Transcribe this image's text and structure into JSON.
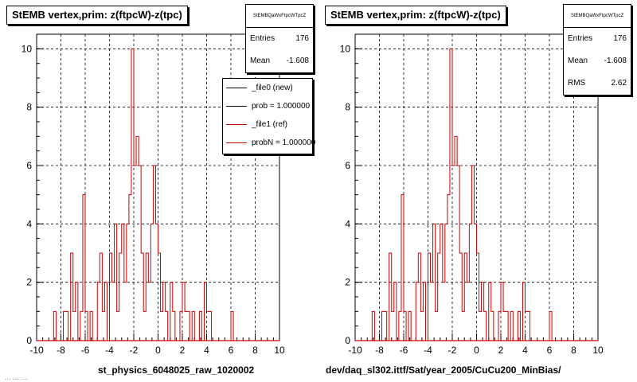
{
  "footer_text": "… … …",
  "chart_data": [
    {
      "type": "histogram",
      "title": "StEMB  vertex,prim: z(ftpcW)-z(tpc)",
      "xlabel": "st_physics_6048025_raw_1020002",
      "ylabel": "",
      "xlim": [
        -10,
        10
      ],
      "ylim": [
        0,
        10.5
      ],
      "xticks": [
        -10,
        -8,
        -6,
        -4,
        -2,
        0,
        2,
        4,
        6,
        8,
        10
      ],
      "yticks": [
        0,
        2,
        4,
        6,
        8,
        10
      ],
      "grid": true,
      "bin_width": 0.2,
      "stats": {
        "name": "StEMBQaWxFtpcWTpcZ",
        "entries_label": "Entries",
        "entries": "176",
        "mean_label": "Mean",
        "mean": "-1.608"
      },
      "legend": {
        "placement": "top-right",
        "entries": [
          {
            "label": "_file0 (new)",
            "color": "#000000"
          },
          {
            "label": "prob = 1.000000",
            "color": "#000000"
          },
          {
            "label": "_file1 (ref)",
            "color": "#cc0000"
          },
          {
            "label": "probN = 1.000000",
            "color": "#cc0000"
          }
        ]
      },
      "series": [
        {
          "color": "#cc0000",
          "x": [
            -8.7,
            -8.5,
            -8.3,
            -8.1,
            -7.9,
            -7.7,
            -7.5,
            -7.3,
            -7.1,
            -6.9,
            -6.7,
            -6.5,
            -6.3,
            -6.1,
            -5.9,
            -5.7,
            -5.5,
            -5.3,
            -5.1,
            -4.9,
            -4.7,
            -4.5,
            -4.3,
            -4.1,
            -3.9,
            -3.7,
            -3.5,
            -3.3,
            -3.1,
            -2.9,
            -2.7,
            -2.5,
            -2.3,
            -2.1,
            -1.9,
            -1.7,
            -1.5,
            -1.3,
            -1.1,
            -0.9,
            -0.7,
            -0.5,
            -0.3,
            -0.1,
            0.1,
            0.3,
            0.5,
            0.7,
            0.9,
            1.1,
            1.3,
            1.5,
            1.7,
            1.9,
            2.1,
            2.3,
            2.5,
            2.7,
            2.9,
            3.1,
            3.3,
            3.5,
            3.7,
            3.9,
            4.1,
            4.3,
            4.5,
            4.7,
            4.9,
            5.1,
            5.3,
            5.5,
            5.7,
            5.9,
            6.1,
            6.3,
            6.5
          ],
          "values": [
            0,
            1,
            0,
            0,
            0,
            1,
            1,
            0,
            3,
            1,
            2,
            0,
            1,
            5,
            1,
            0,
            1,
            0,
            0,
            2,
            3,
            1,
            2,
            0,
            3,
            2,
            4,
            1,
            3,
            4,
            2,
            4,
            5,
            10,
            6,
            7,
            6,
            3,
            1,
            3,
            2,
            4,
            6,
            4,
            3,
            1,
            2,
            1,
            0,
            2,
            1,
            0,
            0,
            1,
            2,
            1,
            1,
            0,
            1,
            0,
            0,
            1,
            0,
            2,
            1,
            1,
            0,
            0,
            0,
            0,
            0,
            0,
            0,
            0,
            1,
            0,
            0
          ]
        }
      ]
    },
    {
      "type": "histogram",
      "title": "StEMB  vertex,prim: z(ftpcW)-z(tpc)",
      "xlabel": "dev/daq_sl302.ittf/Sat/year_2005/CuCu200_MinBias/",
      "ylabel": "",
      "xlim": [
        -10,
        10
      ],
      "ylim": [
        0,
        10.5
      ],
      "xticks": [
        -10,
        -8,
        -6,
        -4,
        -2,
        0,
        2,
        4,
        6,
        8,
        10
      ],
      "yticks": [
        0,
        2,
        4,
        6,
        8,
        10
      ],
      "grid": true,
      "bin_width": 0.2,
      "stats": {
        "name": "StEMBQaWxFtpcWTpcZ",
        "entries_label": "Entries",
        "entries": "176",
        "mean_label": "Mean",
        "mean": "-1.608",
        "rms_label": "RMS",
        "rms": "2.62"
      },
      "series": [
        {
          "color": "#cc0000",
          "x": [
            -8.7,
            -8.5,
            -8.3,
            -8.1,
            -7.9,
            -7.7,
            -7.5,
            -7.3,
            -7.1,
            -6.9,
            -6.7,
            -6.5,
            -6.3,
            -6.1,
            -5.9,
            -5.7,
            -5.5,
            -5.3,
            -5.1,
            -4.9,
            -4.7,
            -4.5,
            -4.3,
            -4.1,
            -3.9,
            -3.7,
            -3.5,
            -3.3,
            -3.1,
            -2.9,
            -2.7,
            -2.5,
            -2.3,
            -2.1,
            -1.9,
            -1.7,
            -1.5,
            -1.3,
            -1.1,
            -0.9,
            -0.7,
            -0.5,
            -0.3,
            -0.1,
            0.1,
            0.3,
            0.5,
            0.7,
            0.9,
            1.1,
            1.3,
            1.5,
            1.7,
            1.9,
            2.1,
            2.3,
            2.5,
            2.7,
            2.9,
            3.1,
            3.3,
            3.5,
            3.7,
            3.9,
            4.1,
            4.3,
            4.5,
            4.7,
            4.9,
            5.1,
            5.3,
            5.5,
            5.7,
            5.9,
            6.1,
            6.3,
            6.5
          ],
          "values": [
            0,
            1,
            0,
            0,
            0,
            1,
            1,
            0,
            3,
            1,
            2,
            0,
            1,
            5,
            1,
            0,
            1,
            0,
            0,
            2,
            3,
            1,
            2,
            0,
            3,
            2,
            4,
            1,
            3,
            4,
            2,
            4,
            5,
            10,
            6,
            7,
            6,
            3,
            1,
            3,
            2,
            4,
            6,
            4,
            3,
            1,
            2,
            1,
            0,
            2,
            1,
            0,
            0,
            1,
            2,
            1,
            1,
            0,
            1,
            0,
            0,
            1,
            0,
            2,
            1,
            1,
            0,
            0,
            0,
            0,
            0,
            0,
            0,
            0,
            1,
            0,
            0
          ]
        }
      ]
    }
  ]
}
